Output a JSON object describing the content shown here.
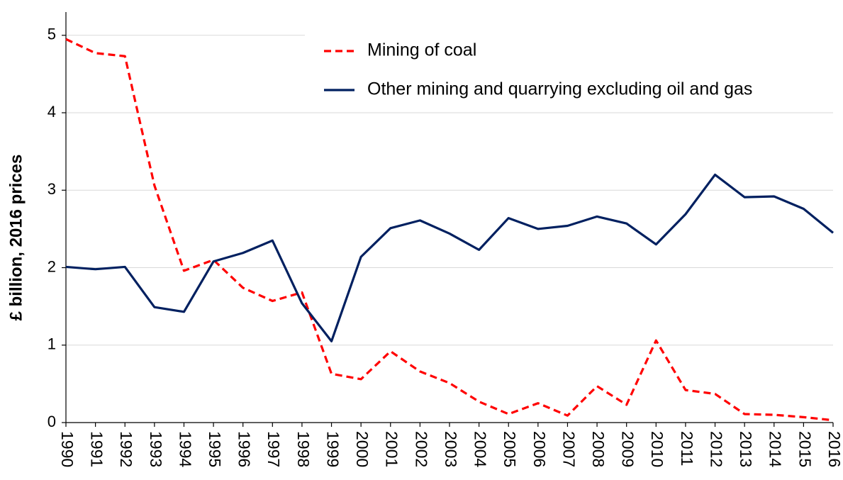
{
  "chart_data": {
    "type": "line",
    "y_label": "£ billion, 2016 prices",
    "categories": [
      "1990",
      "1991",
      "1992",
      "1993",
      "1994",
      "1995",
      "1996",
      "1997",
      "1998",
      "1999",
      "2000",
      "2001",
      "2002",
      "2003",
      "2004",
      "2005",
      "2006",
      "2007",
      "2008",
      "2009",
      "2010",
      "2011",
      "2012",
      "2013",
      "2014",
      "2015",
      "2016"
    ],
    "series": [
      {
        "name": "Mining of coal",
        "color": "#ff0000",
        "linestyle": "dashed",
        "values": [
          4.95,
          4.77,
          4.73,
          3.06,
          1.96,
          2.1,
          1.74,
          1.57,
          1.68,
          0.63,
          0.56,
          0.92,
          0.66,
          0.51,
          0.27,
          0.11,
          0.25,
          0.09,
          0.47,
          0.23,
          1.06,
          0.42,
          0.37,
          0.11,
          0.1,
          0.07,
          0.03
        ]
      },
      {
        "name": "Other mining and quarrying excluding oil and gas",
        "color": "#002060",
        "linestyle": "solid",
        "values": [
          2.01,
          1.98,
          2.01,
          1.49,
          1.43,
          2.08,
          2.19,
          2.35,
          1.54,
          1.05,
          2.14,
          2.51,
          2.61,
          2.44,
          2.23,
          2.64,
          2.5,
          2.54,
          2.66,
          2.57,
          2.3,
          2.69,
          3.2,
          2.91,
          2.92,
          2.76,
          2.45
        ]
      }
    ],
    "ylim": [
      0,
      5.3
    ],
    "yticks": [
      0,
      1,
      2,
      3,
      4,
      5
    ],
    "grid": true,
    "legend": "upper right"
  }
}
